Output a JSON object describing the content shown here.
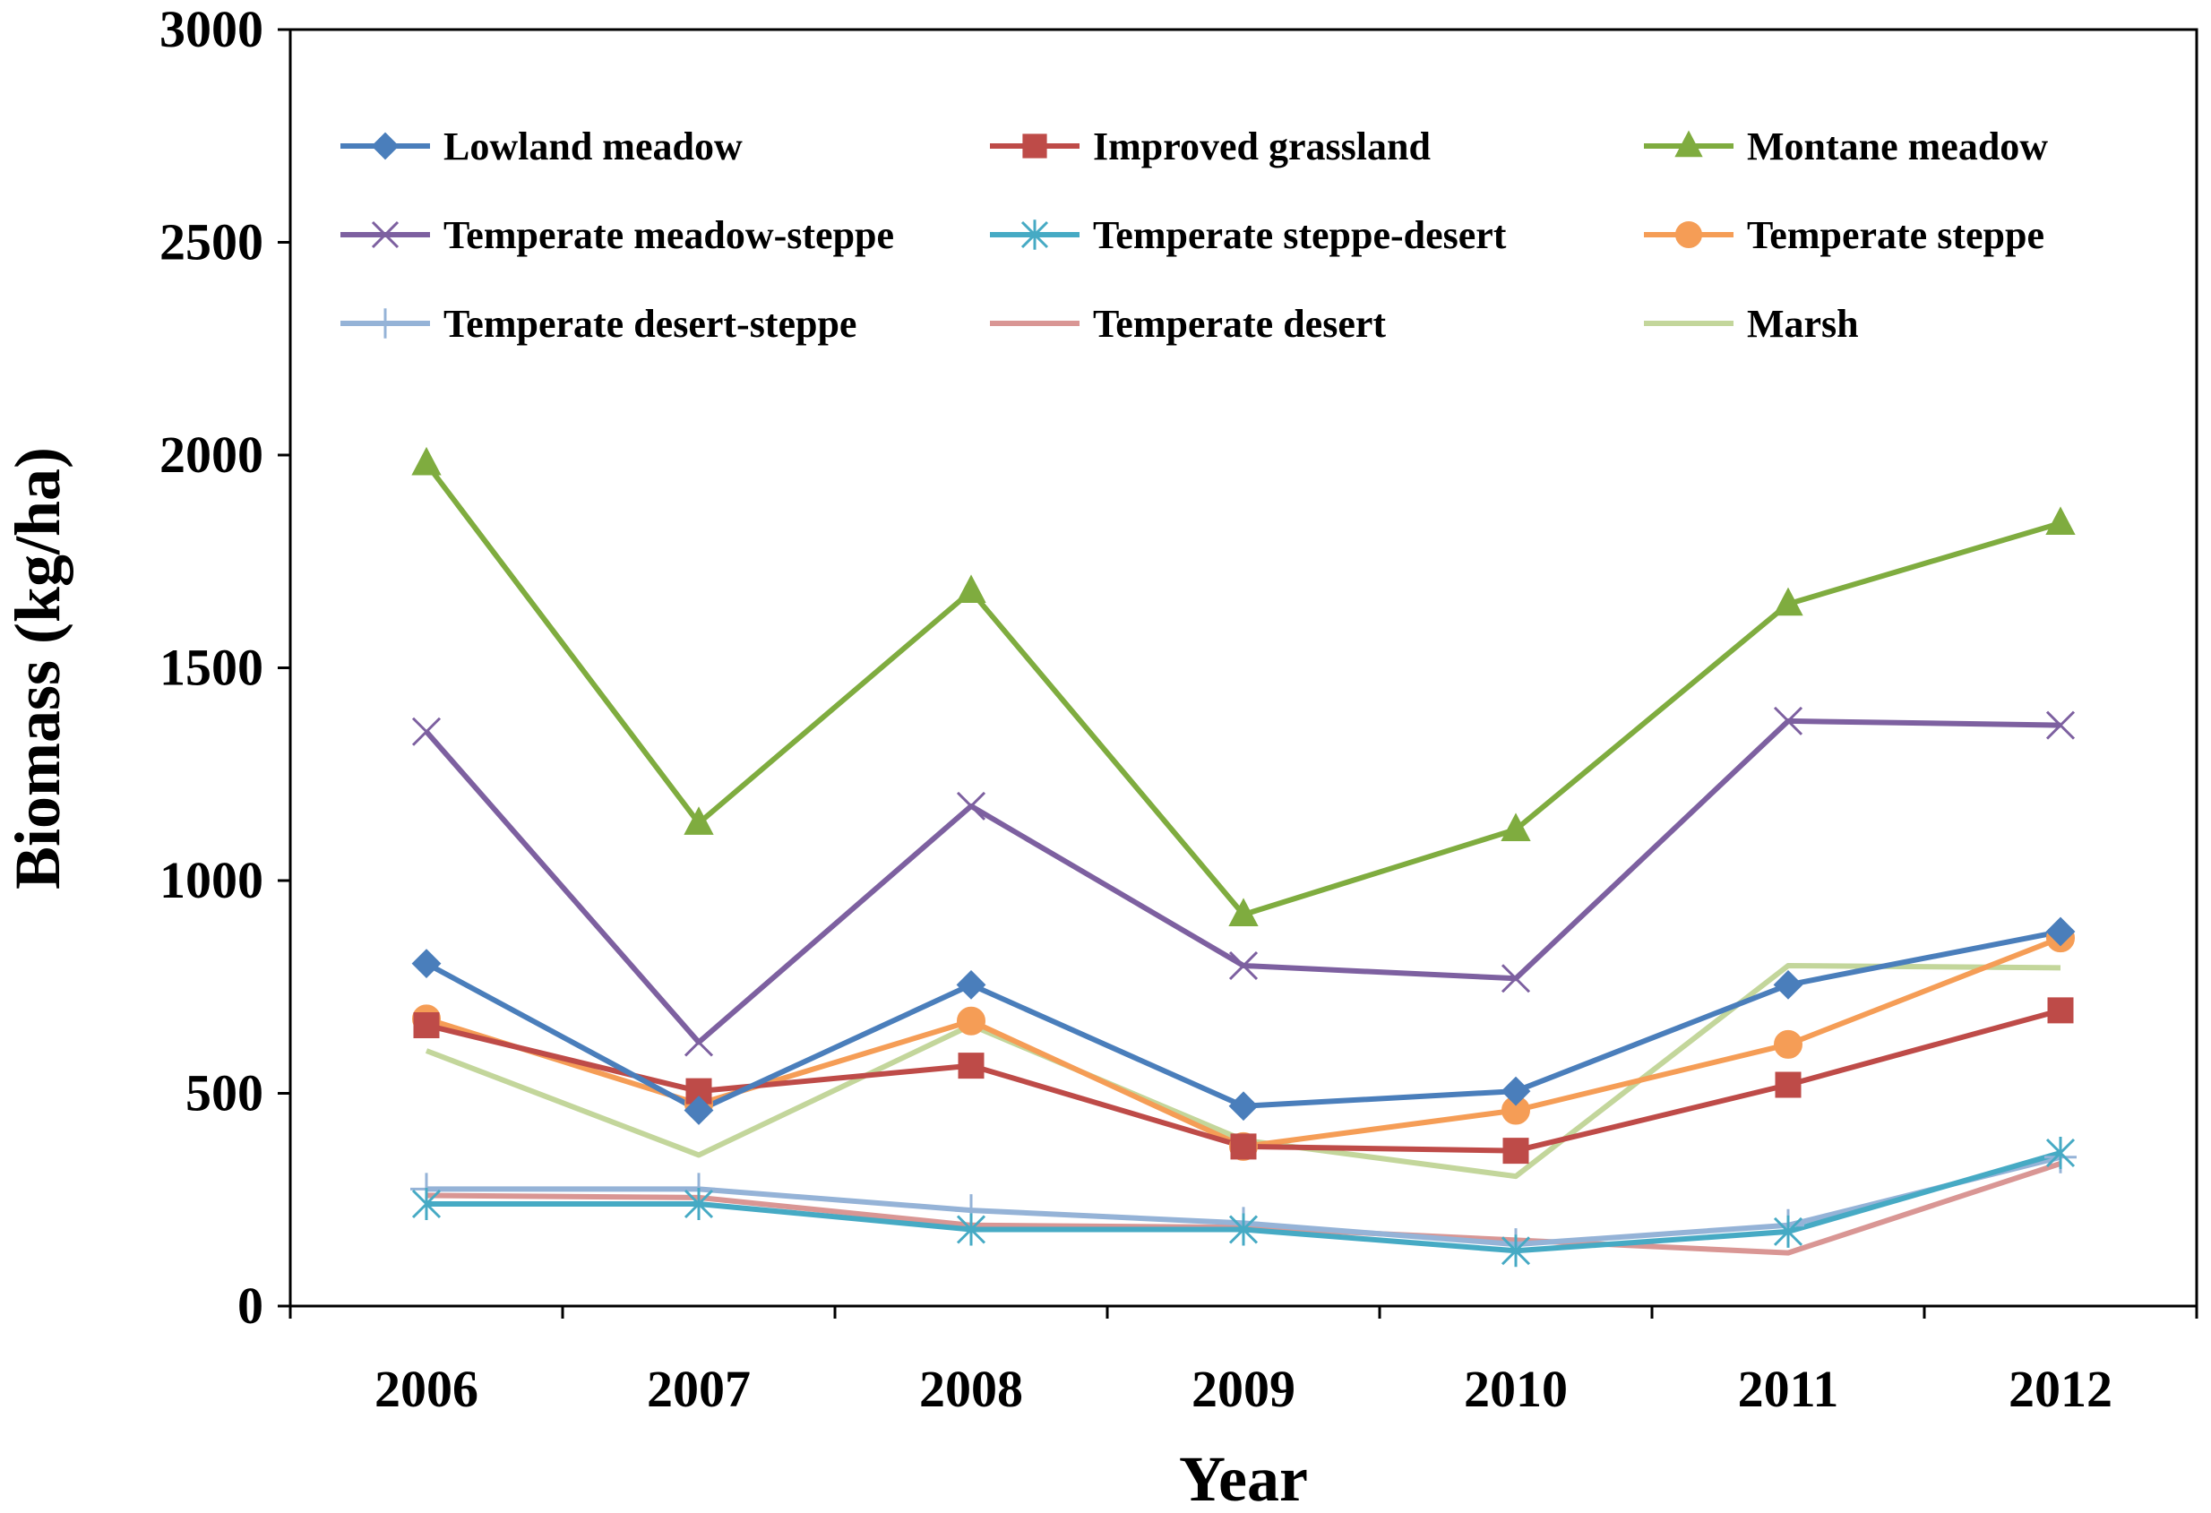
{
  "chart_data": {
    "type": "line",
    "title": "",
    "xlabel": "Year",
    "ylabel": "Biomass (kg/ha)",
    "ylim": [
      0,
      3000
    ],
    "yticks": [
      0,
      500,
      1000,
      1500,
      2000,
      2500,
      3000
    ],
    "grid": false,
    "legend_position": "top",
    "categories": [
      "2006",
      "2007",
      "2008",
      "2009",
      "2010",
      "2011",
      "2012"
    ],
    "series": [
      {
        "name": "Lowland meadow",
        "color": "#4a7ebb",
        "marker": "diamond",
        "values": [
          805,
          460,
          755,
          470,
          505,
          755,
          880
        ]
      },
      {
        "name": "Improved grassland",
        "color": "#be4b48",
        "marker": "square",
        "values": [
          660,
          505,
          565,
          375,
          365,
          520,
          695
        ]
      },
      {
        "name": "Montane meadow",
        "color": "#7fac3f",
        "marker": "triangle",
        "values": [
          1980,
          1135,
          1680,
          920,
          1120,
          1650,
          1840
        ]
      },
      {
        "name": "Temperate meadow-steppe",
        "color": "#7d60a0",
        "marker": "x",
        "values": [
          1350,
          620,
          1175,
          800,
          770,
          1375,
          1365
        ]
      },
      {
        "name": "Temperate steppe-desert",
        "color": "#46aac4",
        "marker": "star",
        "values": [
          240,
          240,
          180,
          180,
          130,
          175,
          360
        ]
      },
      {
        "name": "Temperate steppe",
        "color": "#f59d56",
        "marker": "circle",
        "values": [
          675,
          475,
          670,
          375,
          460,
          615,
          865
        ]
      },
      {
        "name": "Temperate desert-steppe",
        "color": "#95b3d7",
        "marker": "plus",
        "values": [
          275,
          275,
          225,
          195,
          145,
          190,
          350
        ]
      },
      {
        "name": "Temperate desert",
        "color": "#d99694",
        "marker": "none",
        "values": [
          260,
          255,
          190,
          185,
          155,
          125,
          335
        ]
      },
      {
        "name": "Marsh",
        "color": "#c3d69b",
        "marker": "none",
        "values": [
          600,
          355,
          660,
          390,
          305,
          800,
          795
        ]
      }
    ]
  }
}
